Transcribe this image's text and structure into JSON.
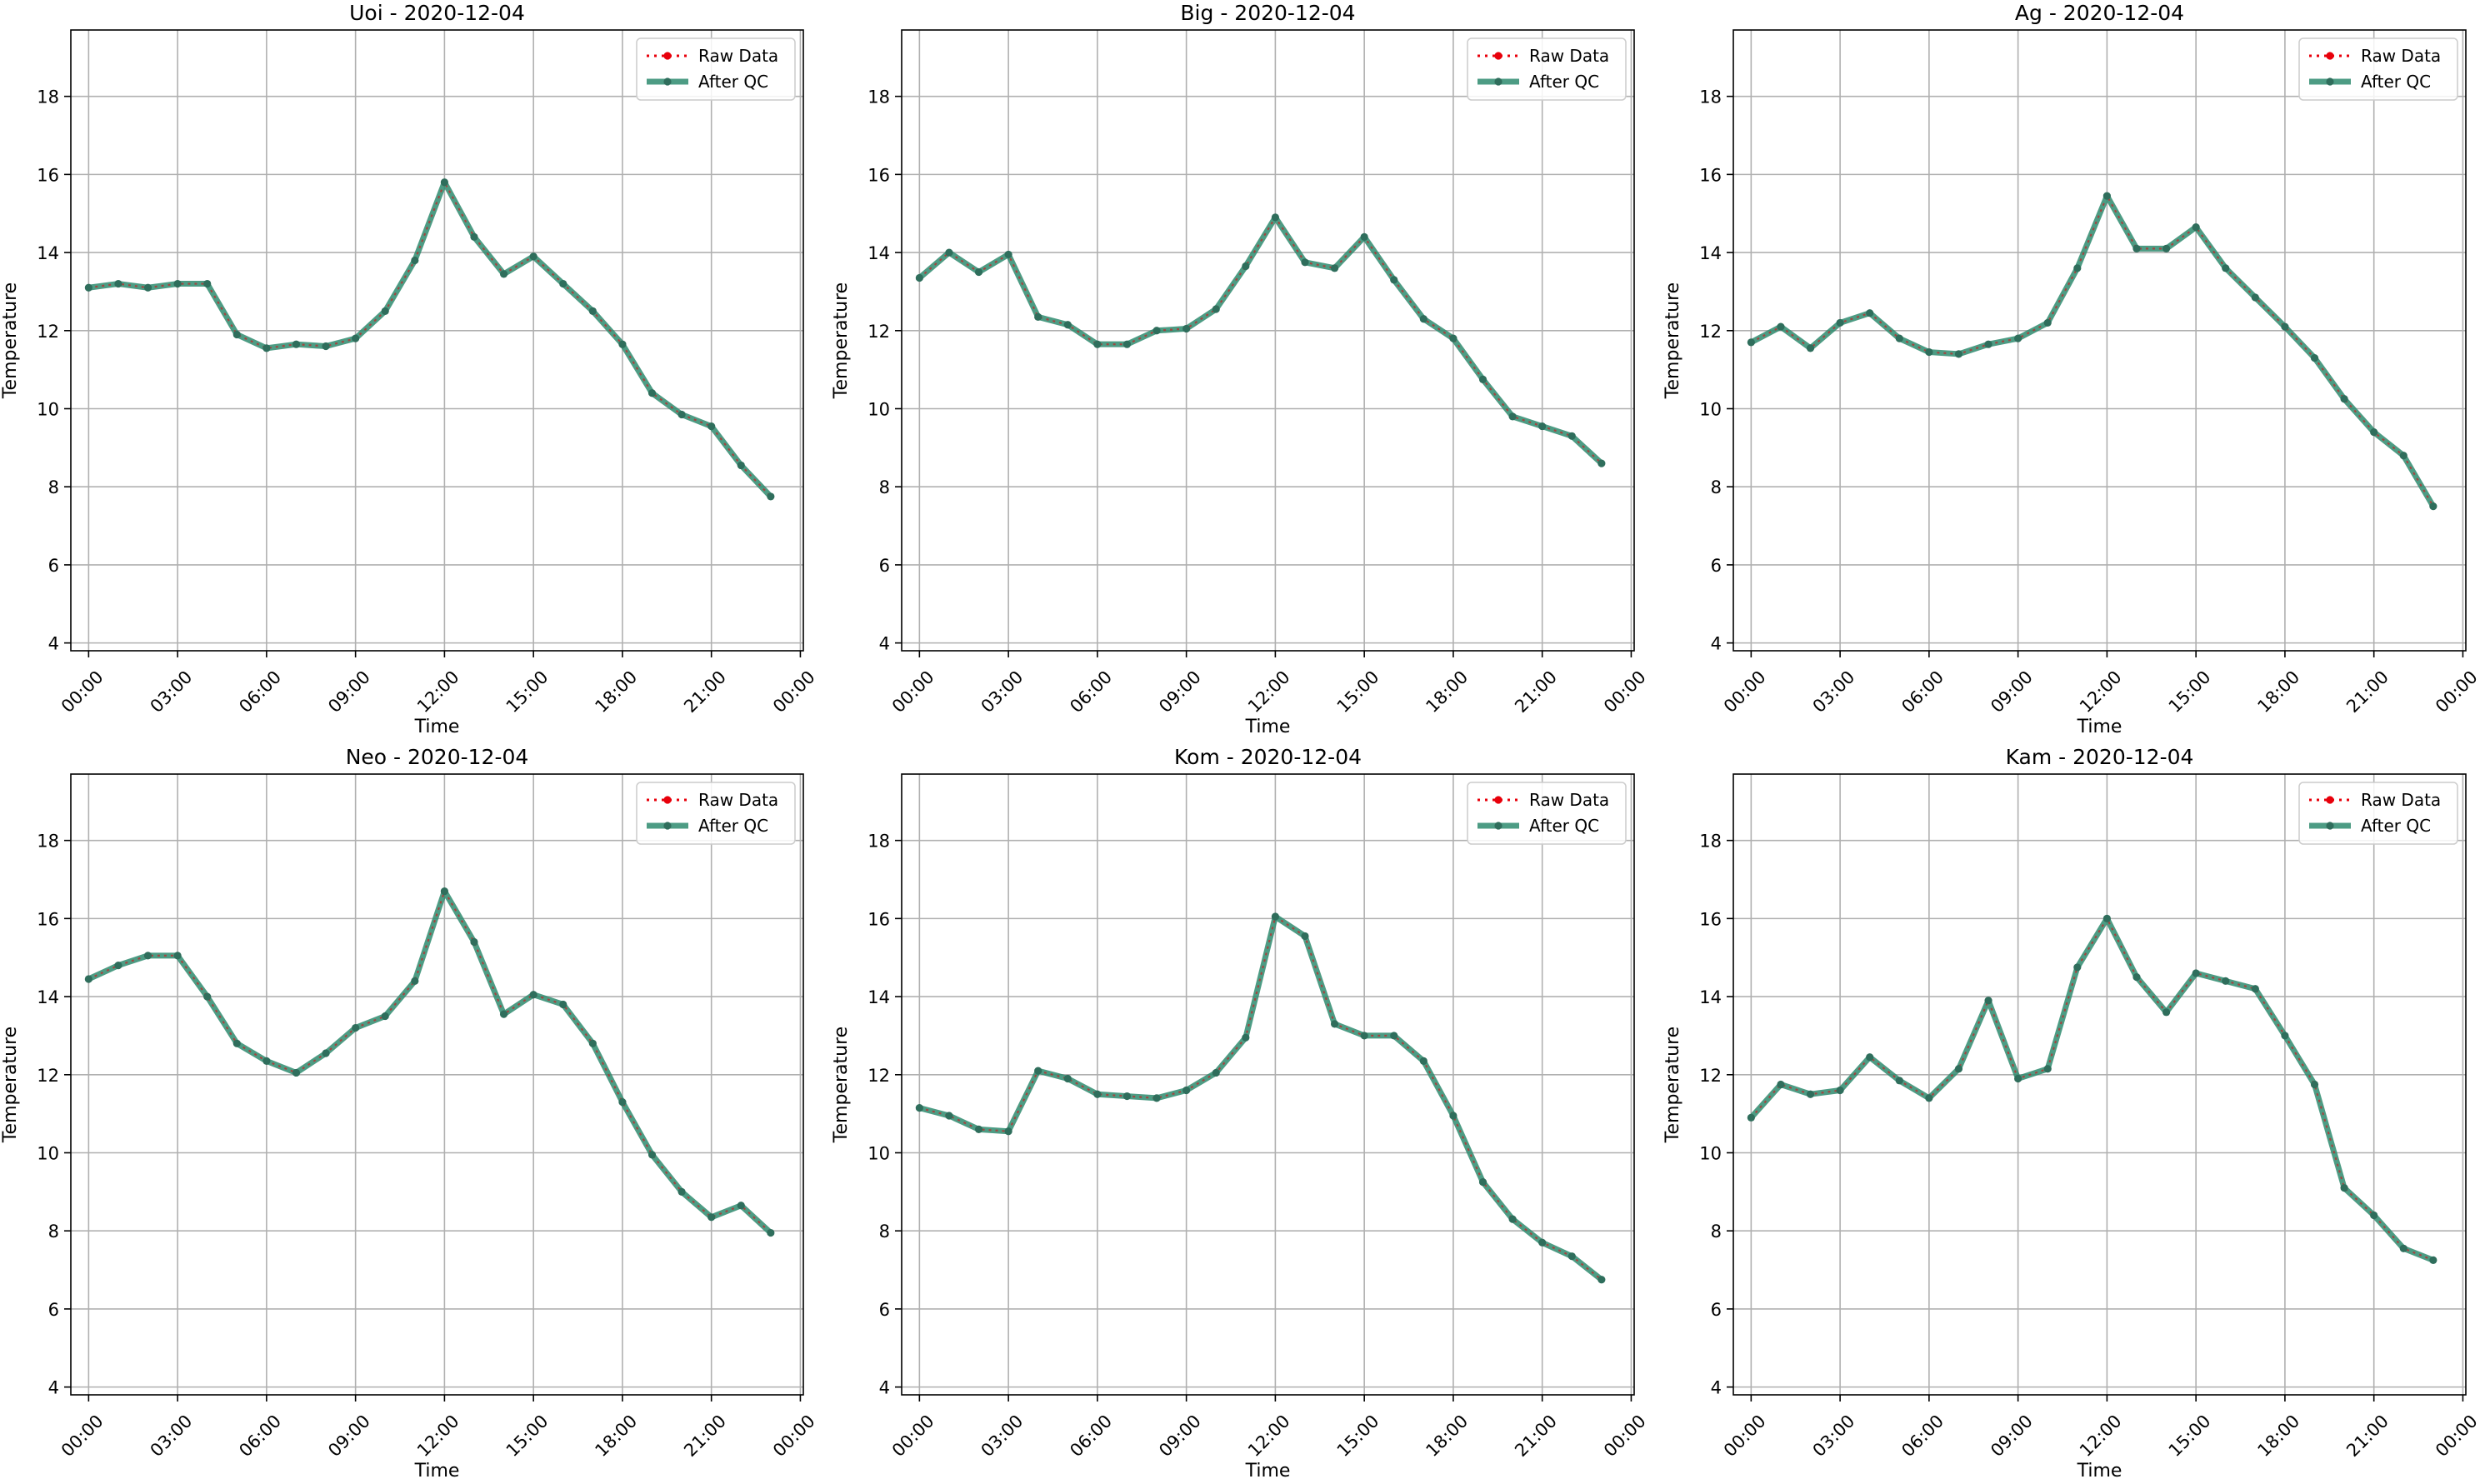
{
  "figure": {
    "legend_labels": {
      "raw": "Raw Data",
      "qc": "After QC"
    },
    "colors": {
      "raw": "#e8000b",
      "qc": "#2e8b6e",
      "marker": "#2f6e5c",
      "grid": "#b0b0b0"
    }
  },
  "chart_data": [
    {
      "type": "line",
      "title": "Uoi - 2020-12-04",
      "xlabel": "Time",
      "ylabel": "Temperature",
      "x_ticks": [
        "00:00",
        "03:00",
        "06:00",
        "09:00",
        "12:00",
        "15:00",
        "18:00",
        "21:00",
        "00:00"
      ],
      "y_ticks": [
        4,
        6,
        8,
        10,
        12,
        14,
        16,
        18
      ],
      "ylim": [
        3.8,
        19.7
      ],
      "xlim_hours": [
        -0.6,
        24.1
      ],
      "grid": true,
      "legend": "top-right",
      "x_hours": [
        0,
        1,
        2,
        3,
        4,
        5,
        6,
        7,
        8,
        9,
        10,
        11,
        12,
        13,
        14,
        15,
        16,
        17,
        18,
        19,
        20,
        21,
        22,
        23
      ],
      "series": [
        {
          "name": "Raw Data",
          "values": [
            13.1,
            13.2,
            13.1,
            13.2,
            13.2,
            11.9,
            11.55,
            11.65,
            11.6,
            11.8,
            12.5,
            13.8,
            15.8,
            14.4,
            13.45,
            13.9,
            13.2,
            12.5,
            11.65,
            10.4,
            9.85,
            9.55,
            8.55,
            7.75
          ]
        },
        {
          "name": "After QC",
          "values": [
            13.1,
            13.2,
            13.1,
            13.2,
            13.2,
            11.9,
            11.55,
            11.65,
            11.6,
            11.8,
            12.5,
            13.8,
            15.8,
            14.4,
            13.45,
            13.9,
            13.2,
            12.5,
            11.65,
            10.4,
            9.85,
            9.55,
            8.55,
            7.75
          ]
        }
      ]
    },
    {
      "type": "line",
      "title": "Big - 2020-12-04",
      "xlabel": "Time",
      "ylabel": "Temperature",
      "x_ticks": [
        "00:00",
        "03:00",
        "06:00",
        "09:00",
        "12:00",
        "15:00",
        "18:00",
        "21:00",
        "00:00"
      ],
      "y_ticks": [
        4,
        6,
        8,
        10,
        12,
        14,
        16,
        18
      ],
      "ylim": [
        3.8,
        19.7
      ],
      "xlim_hours": [
        -0.6,
        24.1
      ],
      "grid": true,
      "legend": "top-right",
      "x_hours": [
        0,
        1,
        2,
        3,
        4,
        5,
        6,
        7,
        8,
        9,
        10,
        11,
        12,
        13,
        14,
        15,
        16,
        17,
        18,
        19,
        20,
        21,
        22,
        23
      ],
      "series": [
        {
          "name": "Raw Data",
          "values": [
            13.35,
            14.0,
            13.5,
            13.95,
            12.35,
            12.15,
            11.65,
            11.65,
            12.0,
            12.05,
            12.55,
            13.65,
            14.9,
            13.75,
            13.6,
            14.4,
            13.3,
            12.3,
            11.8,
            10.75,
            9.8,
            9.55,
            9.3,
            8.6
          ]
        },
        {
          "name": "After QC",
          "values": [
            13.35,
            14.0,
            13.5,
            13.95,
            12.35,
            12.15,
            11.65,
            11.65,
            12.0,
            12.05,
            12.55,
            13.65,
            14.9,
            13.75,
            13.6,
            14.4,
            13.3,
            12.3,
            11.8,
            10.75,
            9.8,
            9.55,
            9.3,
            8.6
          ]
        }
      ]
    },
    {
      "type": "line",
      "title": "Ag - 2020-12-04",
      "xlabel": "Time",
      "ylabel": "Temperature",
      "x_ticks": [
        "00:00",
        "03:00",
        "06:00",
        "09:00",
        "12:00",
        "15:00",
        "18:00",
        "21:00",
        "00:00"
      ],
      "y_ticks": [
        4,
        6,
        8,
        10,
        12,
        14,
        16,
        18
      ],
      "ylim": [
        3.8,
        19.7
      ],
      "xlim_hours": [
        -0.6,
        24.1
      ],
      "grid": true,
      "legend": "top-right",
      "x_hours": [
        0,
        1,
        2,
        3,
        4,
        5,
        6,
        7,
        8,
        9,
        10,
        11,
        12,
        13,
        14,
        15,
        16,
        17,
        18,
        19,
        20,
        21,
        22,
        23
      ],
      "series": [
        {
          "name": "Raw Data",
          "values": [
            11.7,
            12.1,
            11.55,
            12.2,
            12.45,
            11.8,
            11.45,
            11.4,
            11.65,
            11.8,
            12.2,
            13.6,
            15.45,
            14.1,
            14.1,
            14.65,
            13.6,
            12.85,
            12.1,
            11.3,
            10.25,
            9.4,
            8.8,
            7.5
          ]
        },
        {
          "name": "After QC",
          "values": [
            11.7,
            12.1,
            11.55,
            12.2,
            12.45,
            11.8,
            11.45,
            11.4,
            11.65,
            11.8,
            12.2,
            13.6,
            15.45,
            14.1,
            14.1,
            14.65,
            13.6,
            12.85,
            12.1,
            11.3,
            10.25,
            9.4,
            8.8,
            7.5
          ]
        }
      ]
    },
    {
      "type": "line",
      "title": "Neo - 2020-12-04",
      "xlabel": "Time",
      "ylabel": "Temperature",
      "x_ticks": [
        "00:00",
        "03:00",
        "06:00",
        "09:00",
        "12:00",
        "15:00",
        "18:00",
        "21:00",
        "00:00"
      ],
      "y_ticks": [
        4,
        6,
        8,
        10,
        12,
        14,
        16,
        18
      ],
      "ylim": [
        3.8,
        19.7
      ],
      "xlim_hours": [
        -0.6,
        24.1
      ],
      "grid": true,
      "legend": "top-right",
      "x_hours": [
        0,
        1,
        2,
        3,
        4,
        5,
        6,
        7,
        8,
        9,
        10,
        11,
        12,
        13,
        14,
        15,
        16,
        17,
        18,
        19,
        20,
        21,
        22,
        23
      ],
      "series": [
        {
          "name": "Raw Data",
          "values": [
            14.45,
            14.8,
            15.05,
            15.05,
            14.0,
            12.8,
            12.35,
            12.05,
            12.55,
            13.2,
            13.5,
            14.4,
            16.7,
            15.4,
            13.55,
            14.05,
            13.8,
            12.8,
            11.3,
            9.95,
            9.0,
            8.35,
            8.65,
            7.95
          ]
        },
        {
          "name": "After QC",
          "values": [
            14.45,
            14.8,
            15.05,
            15.05,
            14.0,
            12.8,
            12.35,
            12.05,
            12.55,
            13.2,
            13.5,
            14.4,
            16.7,
            15.4,
            13.55,
            14.05,
            13.8,
            12.8,
            11.3,
            9.95,
            9.0,
            8.35,
            8.65,
            7.95
          ]
        }
      ]
    },
    {
      "type": "line",
      "title": "Kom - 2020-12-04",
      "xlabel": "Time",
      "ylabel": "Temperature",
      "x_ticks": [
        "00:00",
        "03:00",
        "06:00",
        "09:00",
        "12:00",
        "15:00",
        "18:00",
        "21:00",
        "00:00"
      ],
      "y_ticks": [
        4,
        6,
        8,
        10,
        12,
        14,
        16,
        18
      ],
      "ylim": [
        3.8,
        19.7
      ],
      "xlim_hours": [
        -0.6,
        24.1
      ],
      "grid": true,
      "legend": "top-right",
      "x_hours": [
        0,
        1,
        2,
        3,
        4,
        5,
        6,
        7,
        8,
        9,
        10,
        11,
        12,
        13,
        14,
        15,
        16,
        17,
        18,
        19,
        20,
        21,
        22,
        23
      ],
      "series": [
        {
          "name": "Raw Data",
          "values": [
            11.15,
            10.95,
            10.6,
            10.55,
            12.1,
            11.9,
            11.5,
            11.45,
            11.4,
            11.6,
            12.05,
            12.95,
            16.05,
            15.55,
            13.3,
            13.0,
            13.0,
            12.35,
            10.95,
            9.25,
            8.3,
            7.7,
            7.35,
            6.75
          ]
        },
        {
          "name": "After QC",
          "values": [
            11.15,
            10.95,
            10.6,
            10.55,
            12.1,
            11.9,
            11.5,
            11.45,
            11.4,
            11.6,
            12.05,
            12.95,
            16.05,
            15.55,
            13.3,
            13.0,
            13.0,
            12.35,
            10.95,
            9.25,
            8.3,
            7.7,
            7.35,
            6.75
          ]
        }
      ]
    },
    {
      "type": "line",
      "title": "Kam - 2020-12-04",
      "xlabel": "Time",
      "ylabel": "Temperature",
      "x_ticks": [
        "00:00",
        "03:00",
        "06:00",
        "09:00",
        "12:00",
        "15:00",
        "18:00",
        "21:00",
        "00:00"
      ],
      "y_ticks": [
        4,
        6,
        8,
        10,
        12,
        14,
        16,
        18
      ],
      "ylim": [
        3.8,
        19.7
      ],
      "xlim_hours": [
        -0.6,
        24.1
      ],
      "grid": true,
      "legend": "top-right",
      "x_hours": [
        0,
        1,
        2,
        3,
        4,
        5,
        6,
        7,
        8,
        9,
        10,
        11,
        12,
        13,
        14,
        15,
        16,
        17,
        18,
        19,
        20,
        21,
        22,
        23
      ],
      "series": [
        {
          "name": "Raw Data",
          "values": [
            10.9,
            11.75,
            11.5,
            11.6,
            12.45,
            11.85,
            11.4,
            12.15,
            13.9,
            11.9,
            12.15,
            14.75,
            16.0,
            14.5,
            13.6,
            14.6,
            14.4,
            14.2,
            13.0,
            11.75,
            9.1,
            8.4,
            7.55,
            7.25
          ]
        },
        {
          "name": "After QC",
          "values": [
            10.9,
            11.75,
            11.5,
            11.6,
            12.45,
            11.85,
            11.4,
            12.15,
            13.9,
            11.9,
            12.15,
            14.75,
            16.0,
            14.5,
            13.6,
            14.6,
            14.4,
            14.2,
            13.0,
            11.75,
            9.1,
            8.4,
            7.55,
            7.25
          ]
        }
      ]
    }
  ]
}
